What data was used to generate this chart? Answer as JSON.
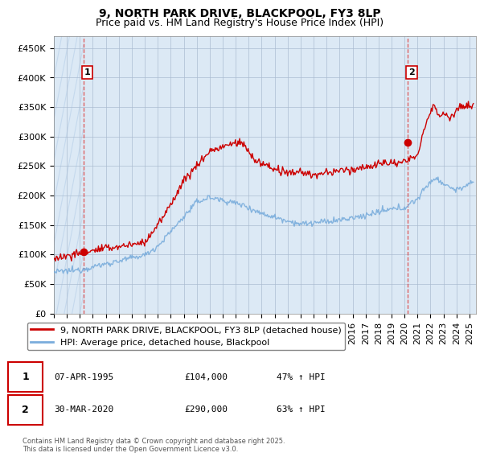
{
  "title": "9, NORTH PARK DRIVE, BLACKPOOL, FY3 8LP",
  "subtitle": "Price paid vs. HM Land Registry's House Price Index (HPI)",
  "ytick_values": [
    0,
    50000,
    100000,
    150000,
    200000,
    250000,
    300000,
    350000,
    400000,
    450000
  ],
  "ylim": [
    0,
    470000
  ],
  "xlim_start": 1993.0,
  "xlim_end": 2025.5,
  "sale1_date": 1995.27,
  "sale1_price": 104000,
  "sale1_label": "1",
  "sale2_date": 2020.25,
  "sale2_price": 290000,
  "sale2_label": "2",
  "red_line_color": "#cc0000",
  "blue_line_color": "#7aaddc",
  "vline_color": "#dd4444",
  "background_color": "#ffffff",
  "plot_bg_color": "#dce9f5",
  "grid_color": "#aabbd0",
  "hatch_color": "#c5d9ed",
  "legend_line1": "9, NORTH PARK DRIVE, BLACKPOOL, FY3 8LP (detached house)",
  "legend_line2": "HPI: Average price, detached house, Blackpool",
  "footer": "Contains HM Land Registry data © Crown copyright and database right 2025.\nThis data is licensed under the Open Government Licence v3.0.",
  "title_fontsize": 10,
  "subtitle_fontsize": 9,
  "tick_fontsize": 8,
  "legend_fontsize": 8,
  "annotation_fontsize": 8
}
